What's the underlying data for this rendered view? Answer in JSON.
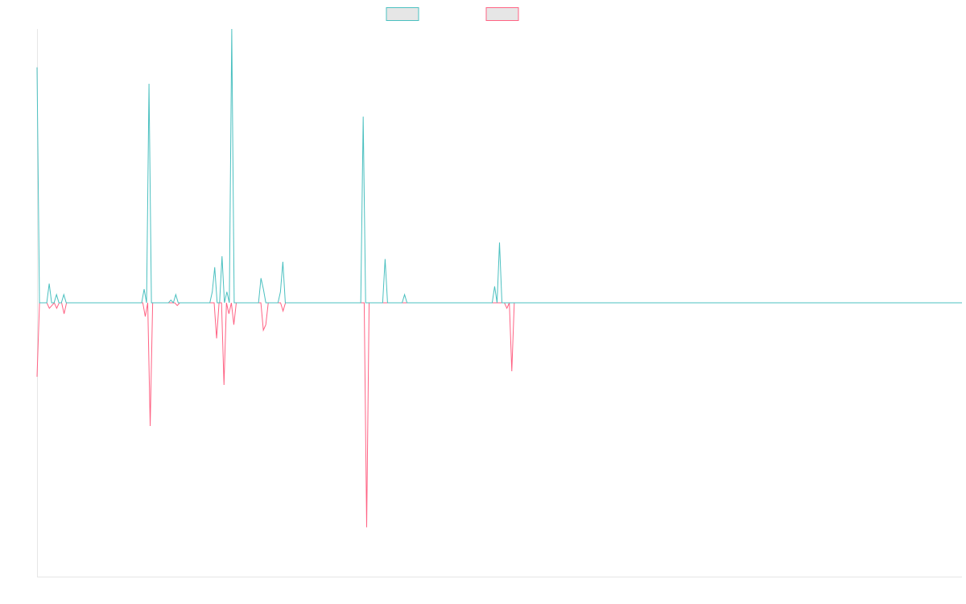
{
  "chart_data": {
    "type": "line",
    "title": "",
    "xlabel": "",
    "ylabel": "",
    "ylim": [
      -100,
      100
    ],
    "grid": false,
    "legend_position": "top-center",
    "series": [
      {
        "color": "#4bc0c0",
        "values": [
          86,
          0,
          0,
          0,
          0,
          7,
          0,
          0,
          3,
          0,
          0,
          3,
          0,
          0,
          0,
          0,
          0,
          0,
          0,
          0,
          0,
          0,
          0,
          0,
          0,
          0,
          0,
          0,
          0,
          0,
          0,
          0,
          0,
          0,
          0,
          0,
          0,
          0,
          0,
          0,
          0,
          0,
          0,
          0,
          5,
          0,
          80,
          0,
          0,
          0,
          0,
          0,
          0,
          0,
          0,
          1,
          0,
          3,
          0,
          0,
          0,
          0,
          0,
          0,
          0,
          0,
          0,
          0,
          0,
          0,
          0,
          0,
          4,
          13,
          0,
          0,
          17,
          0,
          4,
          0,
          100,
          0,
          0,
          0,
          0,
          0,
          0,
          0,
          0,
          0,
          0,
          0,
          9,
          5,
          0,
          0,
          0,
          0,
          0,
          0,
          4,
          15,
          0,
          0,
          0,
          0,
          0,
          0,
          0,
          0,
          0,
          0,
          0,
          0,
          0,
          0,
          0,
          0,
          0,
          0,
          0,
          0,
          0,
          0,
          0,
          0,
          0,
          0,
          0,
          0,
          0,
          0,
          0,
          0,
          68,
          0,
          0,
          0,
          0,
          0,
          0,
          0,
          0,
          16,
          0,
          0,
          0,
          0,
          0,
          0,
          0,
          3,
          0,
          0,
          0,
          0,
          0,
          0,
          0,
          0,
          0,
          0,
          0,
          0,
          0,
          0,
          0,
          0,
          0,
          0,
          0,
          0,
          0,
          0,
          0,
          0,
          0,
          0,
          0,
          0,
          0,
          0,
          0,
          0,
          0,
          0,
          0,
          0,
          6,
          0,
          22,
          0,
          0,
          0,
          0,
          0,
          0,
          0,
          0,
          0,
          0,
          0,
          0,
          0,
          0,
          0,
          0,
          0,
          0,
          0,
          0,
          0,
          0,
          0,
          0,
          0,
          0,
          0,
          0,
          0,
          0,
          0,
          0,
          0,
          0,
          0,
          0,
          0,
          0,
          0,
          0,
          0,
          0,
          0,
          0,
          0,
          0,
          0,
          0,
          0,
          0,
          0,
          0,
          0,
          0,
          0,
          0,
          0,
          0,
          0,
          0,
          0,
          0,
          0,
          0,
          0,
          0,
          0,
          0,
          0,
          0,
          0,
          0,
          0,
          0,
          0,
          0,
          0,
          0,
          0,
          0,
          0,
          0,
          0,
          0,
          0,
          0,
          0,
          0,
          0,
          0,
          0,
          0,
          0,
          0,
          0,
          0,
          0,
          0,
          0,
          0,
          0,
          0,
          0,
          0,
          0,
          0,
          0,
          0,
          0,
          0,
          0,
          0,
          0,
          0,
          0,
          0,
          0,
          0,
          0,
          0,
          0,
          0,
          0,
          0,
          0,
          0,
          0,
          0,
          0,
          0,
          0,
          0,
          0,
          0,
          0,
          0,
          0,
          0,
          0,
          0,
          0,
          0,
          0,
          0,
          0,
          0,
          0,
          0,
          0,
          0,
          0,
          0,
          0,
          0,
          0,
          0,
          0,
          0,
          0,
          0,
          0,
          0,
          0,
          0,
          0,
          0,
          0,
          0,
          0,
          0,
          0,
          0,
          0,
          0,
          0,
          0,
          0,
          0,
          0,
          0,
          0,
          0,
          0,
          0,
          0,
          0,
          0,
          0,
          0,
          0
        ]
      },
      {
        "color": "#ff6384",
        "values": [
          -27,
          0,
          0,
          0,
          0,
          -2,
          -1,
          0,
          -2,
          0,
          0,
          -4,
          0,
          0,
          0,
          0,
          0,
          0,
          0,
          0,
          0,
          0,
          0,
          0,
          0,
          0,
          0,
          0,
          0,
          0,
          0,
          0,
          0,
          0,
          0,
          0,
          0,
          0,
          0,
          0,
          0,
          0,
          0,
          0,
          -5,
          0,
          -45,
          0,
          0,
          0,
          0,
          0,
          0,
          0,
          0,
          0,
          0,
          -1,
          0,
          0,
          0,
          0,
          0,
          0,
          0,
          0,
          0,
          0,
          0,
          0,
          0,
          0,
          0,
          -13,
          0,
          0,
          -30,
          0,
          -4,
          0,
          -8,
          0,
          0,
          0,
          0,
          0,
          0,
          0,
          0,
          0,
          0,
          0,
          -10,
          -8,
          0,
          0,
          0,
          0,
          0,
          0,
          -3,
          0,
          0,
          0,
          0,
          0,
          0,
          0,
          0,
          0,
          0,
          0,
          0,
          0,
          0,
          0,
          0,
          0,
          0,
          0,
          0,
          0,
          0,
          0,
          0,
          0,
          0,
          0,
          0,
          0,
          0,
          0,
          0,
          0,
          -82,
          0,
          0,
          0,
          0,
          0,
          0,
          0,
          0,
          0,
          0,
          0,
          0,
          0,
          0,
          0,
          0,
          0,
          0,
          0,
          0,
          0,
          0,
          0,
          0,
          0,
          0,
          0,
          0,
          0,
          0,
          0,
          0,
          0,
          0,
          0,
          0,
          0,
          0,
          0,
          0,
          0,
          0,
          0,
          0,
          0,
          0,
          0,
          0,
          0,
          0,
          0,
          0,
          0,
          0,
          0,
          0,
          -2,
          0,
          -25,
          0,
          0,
          0,
          0,
          0,
          0,
          0,
          0,
          0,
          0,
          0,
          0,
          0,
          0,
          0,
          0,
          0,
          0,
          0,
          0,
          0,
          0,
          0,
          0,
          0,
          0,
          0,
          0,
          0,
          0,
          0,
          0,
          0,
          0,
          0,
          0,
          0,
          0,
          0,
          0,
          0,
          0,
          0,
          0,
          0,
          0,
          0,
          0,
          0,
          0,
          0,
          0,
          0,
          0,
          0,
          0,
          0,
          0,
          0,
          0,
          0,
          0,
          0,
          0,
          0,
          0,
          0,
          0,
          0,
          0,
          0,
          0,
          0,
          0,
          0,
          0,
          0,
          0,
          0,
          0,
          0,
          0,
          0,
          0,
          0,
          0,
          0,
          0,
          0,
          0,
          0,
          0,
          0,
          0,
          0,
          0,
          0,
          0,
          0,
          0,
          0,
          0,
          0,
          0,
          0,
          0,
          0,
          0,
          0,
          0,
          0,
          0,
          0,
          0,
          0,
          0,
          0,
          0,
          0,
          0,
          0,
          0,
          0,
          0,
          0,
          0,
          0,
          0,
          0,
          0,
          0,
          0,
          0,
          0,
          0,
          0,
          0,
          0,
          0,
          0,
          0,
          0,
          0,
          0,
          0,
          0,
          0,
          0,
          0,
          0,
          0,
          0,
          0,
          0,
          0,
          0,
          0,
          0,
          0,
          0,
          0,
          0,
          0,
          0,
          0,
          0,
          0,
          0,
          0,
          0,
          0,
          0,
          0,
          0,
          0,
          0,
          0,
          0,
          0,
          0,
          0,
          0,
          0
        ]
      }
    ]
  }
}
